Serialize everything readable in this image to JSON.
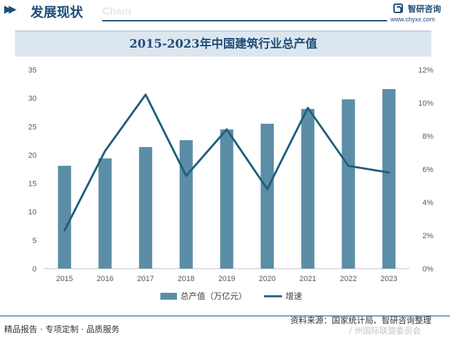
{
  "header": {
    "title": "发展现状",
    "title_en": "Chain",
    "arrow": "▶▶",
    "logo_cn": "智研咨询",
    "logo_url": "www.chyxx.com"
  },
  "chart_data": {
    "type": "bar",
    "title": "2015-2023年中国建筑行业总产值",
    "categories": [
      "2015",
      "2016",
      "2017",
      "2018",
      "2019",
      "2020",
      "2021",
      "2022",
      "2023"
    ],
    "series": [
      {
        "name": "总产值（万亿元）",
        "type": "bar",
        "axis": "left",
        "color": "#5b8ea6",
        "values": [
          18.1,
          19.4,
          21.4,
          22.6,
          24.5,
          25.5,
          28.1,
          29.8,
          31.6
        ]
      },
      {
        "name": "增速",
        "type": "line",
        "axis": "right",
        "color": "#1f5f7a",
        "values": [
          2.3,
          7.1,
          10.5,
          5.6,
          8.4,
          4.8,
          9.7,
          6.2,
          5.8
        ]
      }
    ],
    "y_left": {
      "min": 0,
      "max": 35,
      "ticks": [
        "0",
        "5",
        "10",
        "15",
        "20",
        "25",
        "30",
        "35"
      ]
    },
    "y_right": {
      "min": 0,
      "max": 12,
      "ticks": [
        "0%",
        "2%",
        "4%",
        "6%",
        "8%",
        "10%",
        "12%"
      ]
    },
    "grid": false,
    "legend": "bottom"
  },
  "footer": {
    "left": "精品报告 · 专项定制 · 品质服务",
    "source": "资料来源：国家统计局、智研咨询整理",
    "extra": "/ 州国际联盟委员会"
  }
}
